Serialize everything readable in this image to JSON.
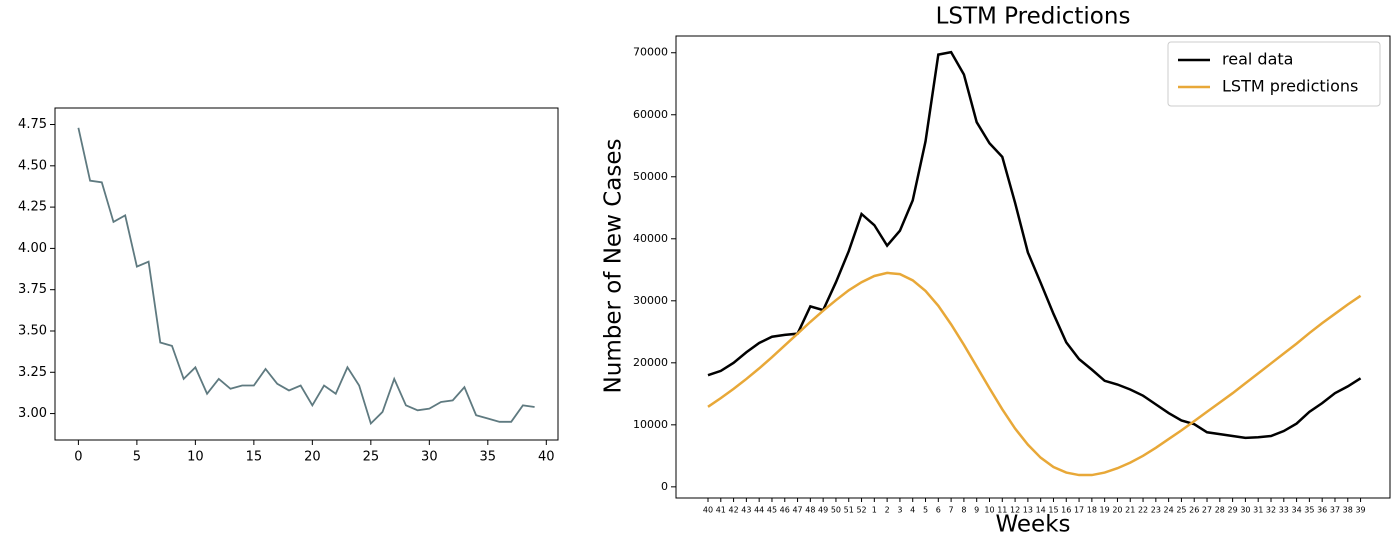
{
  "chart_data": [
    {
      "type": "line",
      "x": [
        0,
        1,
        2,
        3,
        4,
        5,
        6,
        7,
        8,
        9,
        10,
        11,
        12,
        13,
        14,
        15,
        16,
        17,
        18,
        19,
        20,
        21,
        22,
        23,
        24,
        25,
        26,
        27,
        28,
        29,
        30,
        31,
        32,
        33,
        34,
        35,
        36,
        37,
        38,
        39
      ],
      "values": [
        4.73,
        4.41,
        4.4,
        4.16,
        4.2,
        3.89,
        3.92,
        3.43,
        3.41,
        3.21,
        3.28,
        3.12,
        3.21,
        3.15,
        3.17,
        3.17,
        3.27,
        3.18,
        3.14,
        3.17,
        3.05,
        3.17,
        3.12,
        3.28,
        3.17,
        2.94,
        3.01,
        3.21,
        3.05,
        3.02,
        3.03,
        3.07,
        3.08,
        3.16,
        2.99,
        2.97,
        2.95,
        2.95,
        3.05,
        3.04
      ],
      "color": "#5f7a80",
      "xlim": [
        -2,
        41
      ],
      "xticks": [
        0,
        5,
        10,
        15,
        20,
        25,
        30,
        35,
        40
      ],
      "ylim": [
        2.84,
        4.85
      ],
      "yticks": [
        {
          "value": 3,
          "label": "3.00"
        },
        3.25,
        {
          "value": 3.5,
          "label": "3.50"
        },
        3.75,
        {
          "value": 4,
          "label": "4.00"
        },
        4.25,
        {
          "value": 4.5,
          "label": "4.50"
        },
        4.75
      ]
    },
    {
      "type": "line",
      "title": "LSTM Predictions",
      "x_label": "Weeks",
      "y_label": "Number of New Cases",
      "categories": [
        "40",
        "41",
        "42",
        "43",
        "44",
        "45",
        "46",
        "47",
        "48",
        "49",
        "50",
        "51",
        "52",
        "1",
        "2",
        "3",
        "4",
        "5",
        "6",
        "7",
        "8",
        "9",
        "10",
        "11",
        "12",
        "13",
        "14",
        "15",
        "16",
        "17",
        "18",
        "19",
        "20",
        "21",
        "22",
        "23",
        "24",
        "25",
        "26",
        "27",
        "28",
        "29",
        "30",
        "31",
        "32",
        "33",
        "34",
        "35",
        "36",
        "37",
        "38",
        "39"
      ],
      "series": [
        {
          "name": "real data",
          "color": "#000000",
          "values": [
            18000,
            18700,
            20000,
            21700,
            23200,
            24200,
            24500,
            24700,
            29100,
            28500,
            33000,
            38000,
            44000,
            42200,
            38900,
            41300,
            46200,
            55700,
            69700,
            70100,
            66500,
            58800,
            55400,
            53200,
            45800,
            37800,
            32900,
            27900,
            23300,
            20600,
            18900,
            17100,
            16500,
            15700,
            14700,
            13300,
            11900,
            10700,
            10100,
            8800,
            8500,
            8200,
            7900,
            8000,
            8200,
            9000,
            10200,
            12100,
            13500,
            15100,
            16200,
            17500
          ]
        },
        {
          "name": "LSTM predictions",
          "color": "#e8a838",
          "values": [
            12900,
            14300,
            15800,
            17400,
            19100,
            20900,
            22800,
            24700,
            26600,
            28400,
            30100,
            31700,
            33000,
            34000,
            34500,
            34300,
            33300,
            31600,
            29200,
            26200,
            22900,
            19400,
            15900,
            12500,
            9400,
            6800,
            4700,
            3200,
            2300,
            1900,
            1900,
            2300,
            3000,
            3900,
            5000,
            6300,
            7700,
            9100,
            10600,
            12100,
            13600,
            15100,
            16700,
            18300,
            19900,
            21500,
            23100,
            24800,
            26400,
            27900,
            29400,
            30800
          ]
        }
      ],
      "ylim": [
        -1800,
        72700
      ],
      "yticks": [
        0,
        10000,
        20000,
        30000,
        40000,
        50000,
        60000,
        70000
      ],
      "legend": "upper right"
    }
  ]
}
